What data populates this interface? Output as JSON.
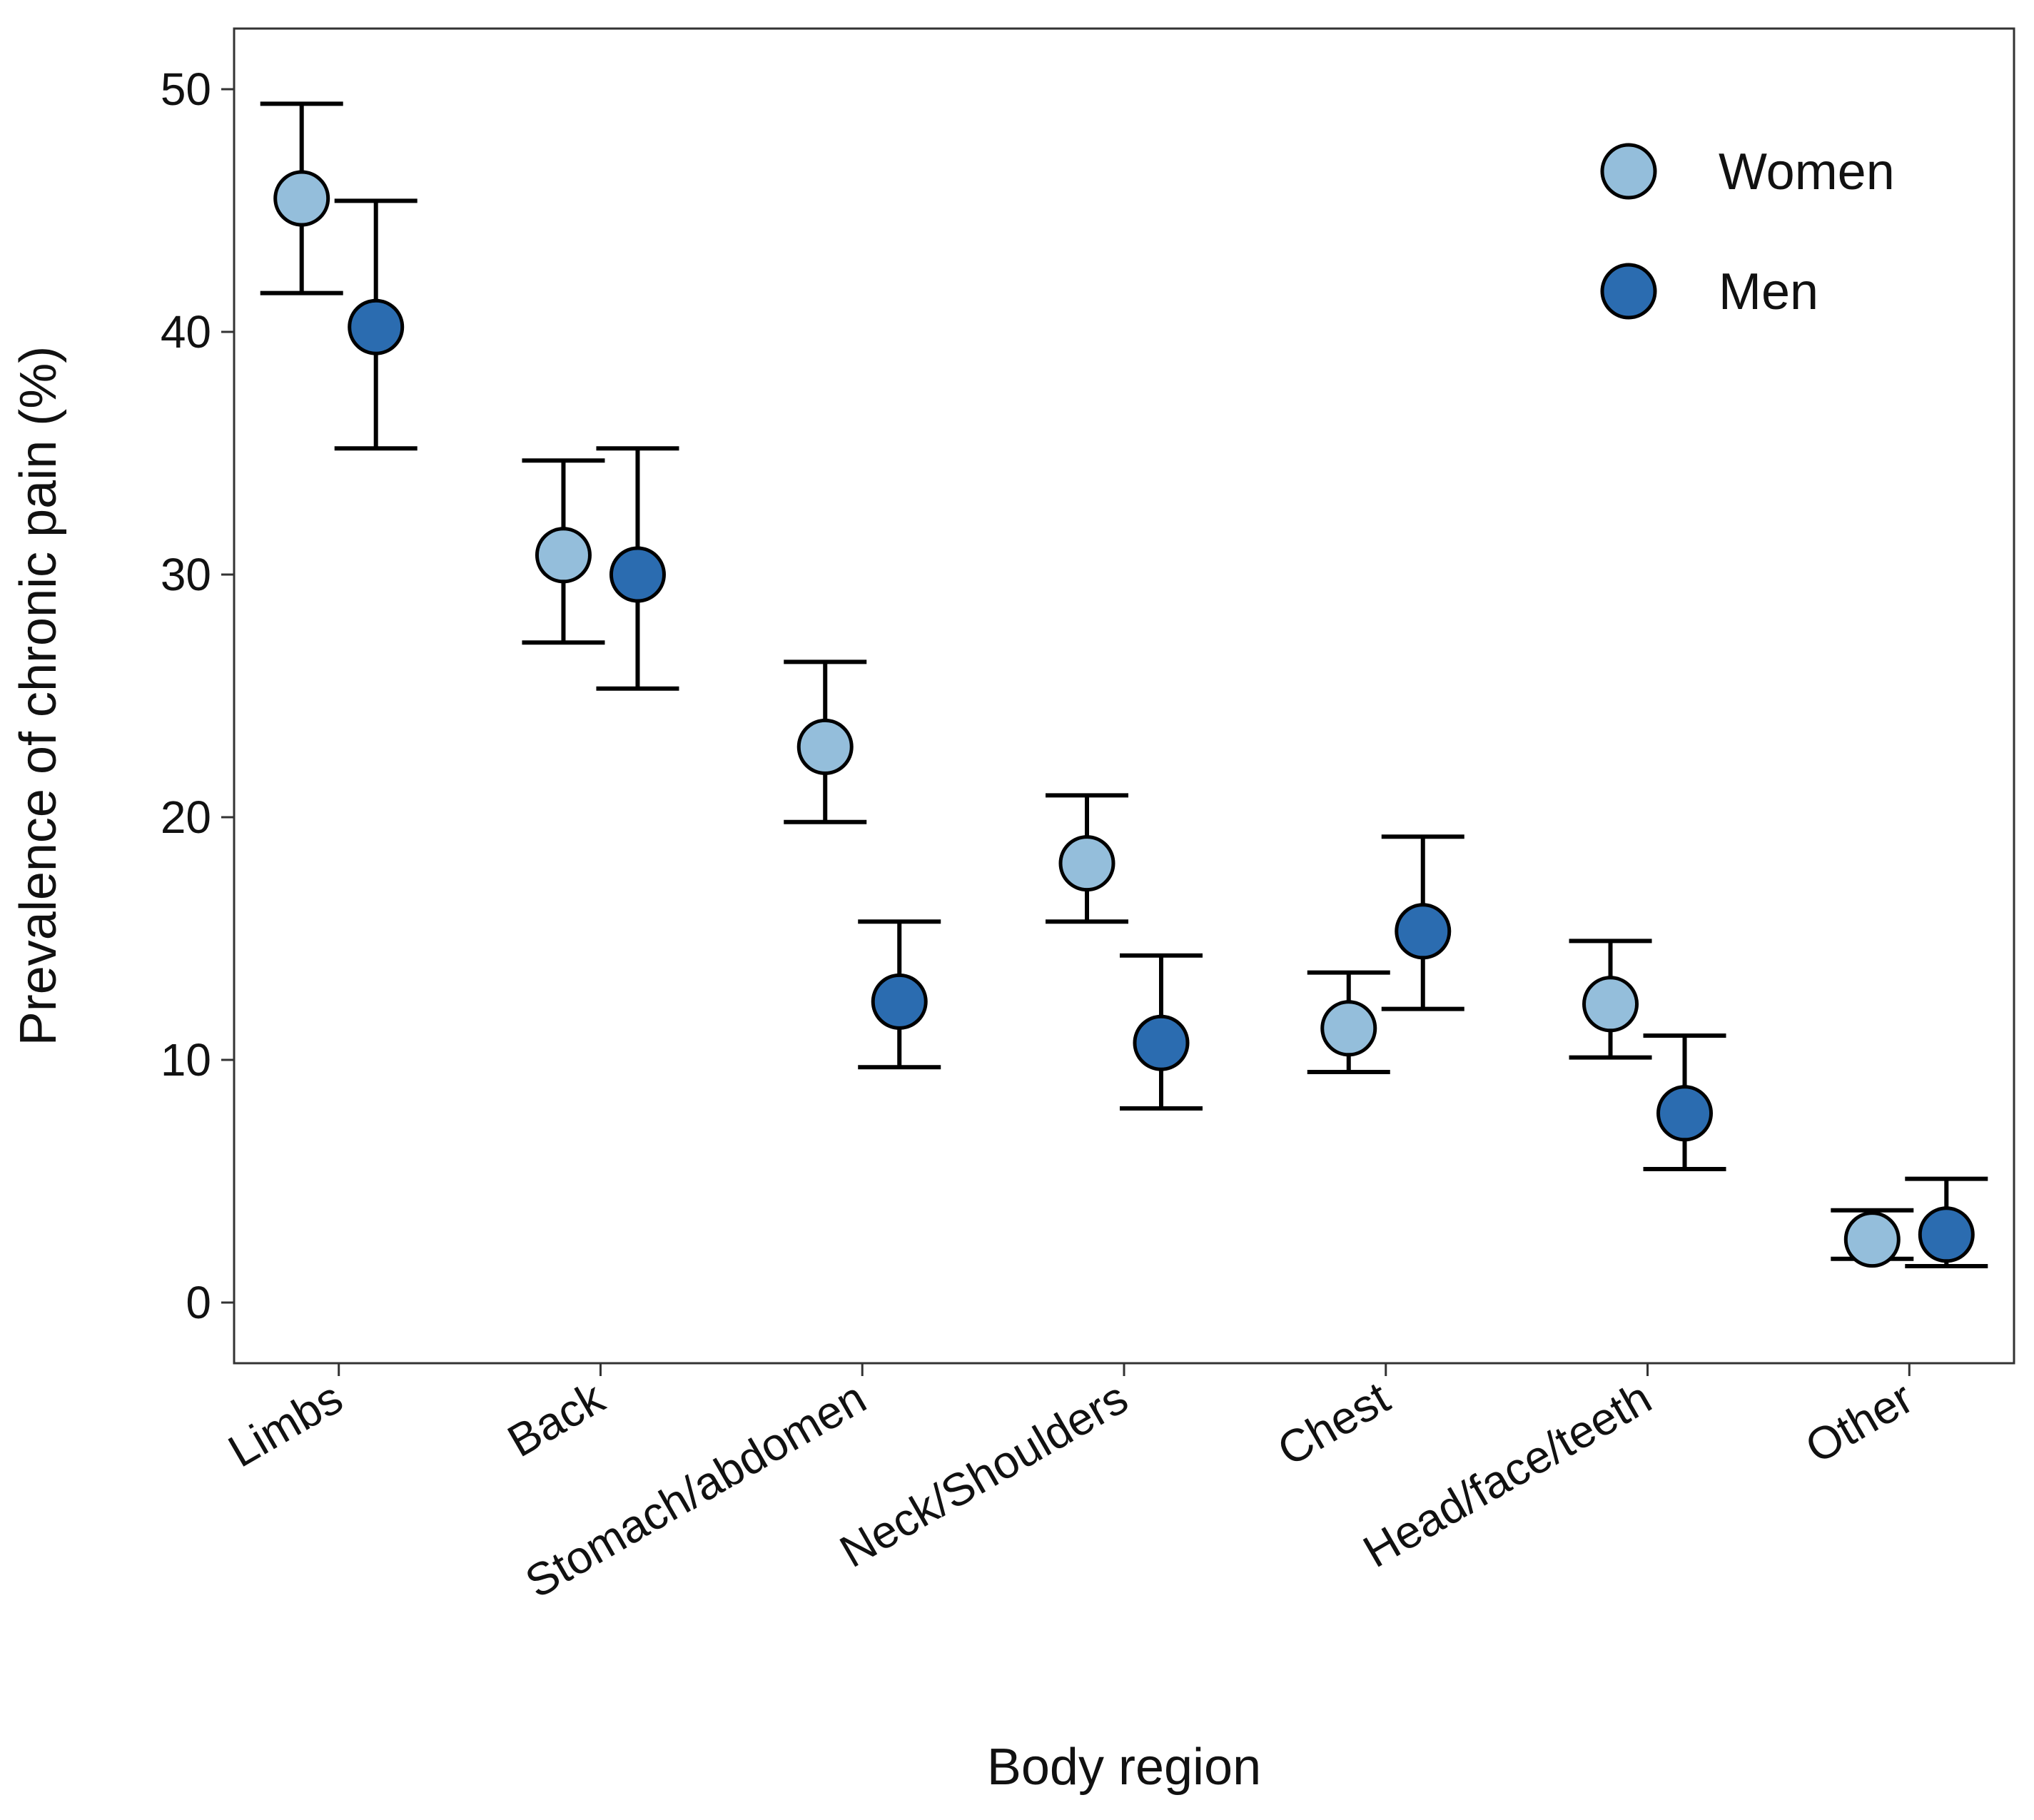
{
  "chart_data": {
    "type": "scatter",
    "xlabel": "Body region",
    "ylabel": "Prevalence of chronic pain (%)",
    "categories": [
      "Limbs",
      "Back",
      "Stomach/abdomen",
      "Neck/Shoulders",
      "Chest",
      "Head/face/teeth",
      "Other"
    ],
    "yticks": [
      "0",
      "10",
      "20",
      "30",
      "40",
      "50"
    ],
    "ylim": [
      -2.5,
      52.5
    ],
    "grid": false,
    "legend_position": "top-right",
    "series": [
      {
        "name": "Women",
        "color": "#94bedb",
        "values": [
          45.5,
          30.8,
          22.9,
          18.1,
          11.3,
          12.3,
          2.6
        ],
        "lower": [
          41.6,
          27.2,
          19.8,
          15.7,
          9.5,
          10.1,
          1.8
        ],
        "upper": [
          49.4,
          34.7,
          26.4,
          20.9,
          13.6,
          14.9,
          3.8
        ]
      },
      {
        "name": "Men",
        "color": "#2b6cb0",
        "values": [
          40.2,
          30.0,
          12.4,
          10.7,
          15.3,
          7.8,
          2.8
        ],
        "lower": [
          35.2,
          25.3,
          9.7,
          8.0,
          12.1,
          5.5,
          1.5
        ],
        "upper": [
          45.4,
          35.2,
          15.7,
          14.3,
          19.2,
          11.0,
          5.1
        ]
      }
    ]
  }
}
